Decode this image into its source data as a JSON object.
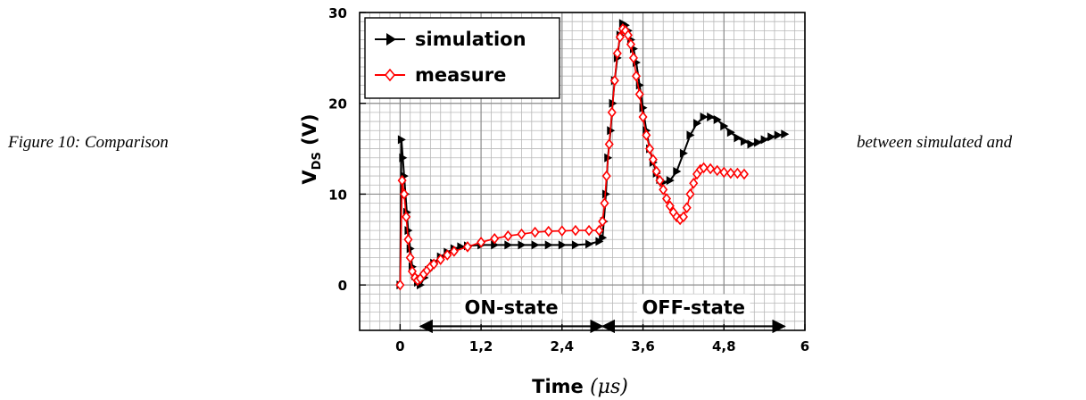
{
  "caption": {
    "left": "Figure 10: Comparison",
    "right": "between simulated and"
  },
  "chart_data": {
    "type": "line",
    "xlabel": "Time",
    "xunit": "(μs)",
    "ylabel": "V",
    "ylabel_sub": "DS",
    "ylabel_unit": "(V)",
    "xlim": [
      -0.6,
      6
    ],
    "ylim": [
      -5,
      30
    ],
    "x_ticks": [
      0,
      1.2,
      2.4,
      3.6,
      4.8,
      6
    ],
    "x_tick_labels": [
      "0",
      "1,2",
      "2,4",
      "3,6",
      "4,8",
      "6"
    ],
    "y_ticks": [
      0,
      10,
      20,
      30
    ],
    "y_tick_labels": [
      "0",
      "10",
      "20",
      "30"
    ],
    "grid": true,
    "legend_position": "top-left",
    "series": [
      {
        "name": "simulation",
        "color": "#000000",
        "marker": "right-triangle",
        "x": [
          0,
          0.02,
          0.04,
          0.06,
          0.08,
          0.1,
          0.12,
          0.15,
          0.18,
          0.22,
          0.26,
          0.3,
          0.36,
          0.42,
          0.5,
          0.6,
          0.7,
          0.8,
          0.9,
          1.0,
          1.2,
          1.4,
          1.6,
          1.8,
          2.0,
          2.2,
          2.4,
          2.6,
          2.8,
          2.95,
          3.0,
          3.02,
          3.05,
          3.08,
          3.12,
          3.15,
          3.18,
          3.22,
          3.26,
          3.3,
          3.34,
          3.38,
          3.42,
          3.46,
          3.5,
          3.55,
          3.6,
          3.65,
          3.7,
          3.75,
          3.8,
          3.85,
          3.9,
          4.0,
          4.1,
          4.2,
          4.3,
          4.4,
          4.5,
          4.6,
          4.7,
          4.8,
          4.9,
          5.0,
          5.1,
          5.2,
          5.3,
          5.4,
          5.5,
          5.6,
          5.7
        ],
        "y": [
          0,
          16,
          14,
          12,
          10,
          8,
          6,
          4,
          2,
          1,
          0.3,
          0,
          0.8,
          1.6,
          2.4,
          3.1,
          3.6,
          4.0,
          4.2,
          4.3,
          4.4,
          4.4,
          4.4,
          4.4,
          4.4,
          4.4,
          4.4,
          4.4,
          4.5,
          4.8,
          5.2,
          7,
          10,
          14,
          17,
          20,
          22.5,
          25,
          27.5,
          28.8,
          28.6,
          28,
          27,
          26,
          24.5,
          22,
          19.5,
          17,
          15,
          13.5,
          12.3,
          11.6,
          11.3,
          11.5,
          12.5,
          14.5,
          16.5,
          17.8,
          18.5,
          18.5,
          18.2,
          17.5,
          16.8,
          16.2,
          15.8,
          15.5,
          15.7,
          16.0,
          16.3,
          16.5,
          16.6
        ]
      },
      {
        "name": "measure",
        "color": "#ff0000",
        "marker": "diamond",
        "x": [
          0,
          0.03,
          0.06,
          0.09,
          0.12,
          0.15,
          0.18,
          0.22,
          0.26,
          0.3,
          0.35,
          0.4,
          0.45,
          0.5,
          0.6,
          0.7,
          0.8,
          1.0,
          1.2,
          1.4,
          1.6,
          1.8,
          2.0,
          2.2,
          2.4,
          2.6,
          2.8,
          2.95,
          3.0,
          3.03,
          3.06,
          3.1,
          3.14,
          3.18,
          3.22,
          3.26,
          3.3,
          3.34,
          3.38,
          3.42,
          3.46,
          3.5,
          3.55,
          3.6,
          3.65,
          3.7,
          3.75,
          3.8,
          3.85,
          3.9,
          3.95,
          4.0,
          4.05,
          4.1,
          4.15,
          4.2,
          4.25,
          4.3,
          4.35,
          4.4,
          4.45,
          4.5,
          4.6,
          4.7,
          4.8,
          4.9,
          5.0,
          5.1
        ],
        "y": [
          0,
          11.5,
          10,
          7.5,
          5,
          3,
          1.5,
          0.8,
          0.5,
          0.7,
          1.2,
          1.6,
          2.0,
          2.3,
          2.8,
          3.3,
          3.7,
          4.2,
          4.7,
          5.1,
          5.4,
          5.6,
          5.8,
          5.9,
          5.95,
          6.0,
          6.0,
          6.0,
          7,
          9,
          12,
          15.5,
          19,
          22.5,
          25.5,
          27.3,
          28.2,
          28.0,
          27.5,
          26.5,
          25,
          23,
          21,
          18.5,
          16.5,
          15,
          13.8,
          12.5,
          11.5,
          10.5,
          9.5,
          8.7,
          8.0,
          7.5,
          7.2,
          7.5,
          8.5,
          10,
          11.2,
          12.2,
          12.7,
          12.9,
          12.8,
          12.6,
          12.4,
          12.3,
          12.3,
          12.2
        ]
      }
    ],
    "annotations": [
      {
        "label": "ON-state",
        "x_start": 0.3,
        "x_end": 3.0,
        "y": -1.8
      },
      {
        "label": "OFF-state",
        "x_start": 3.0,
        "x_end": 5.7,
        "y": -1.8
      }
    ]
  }
}
